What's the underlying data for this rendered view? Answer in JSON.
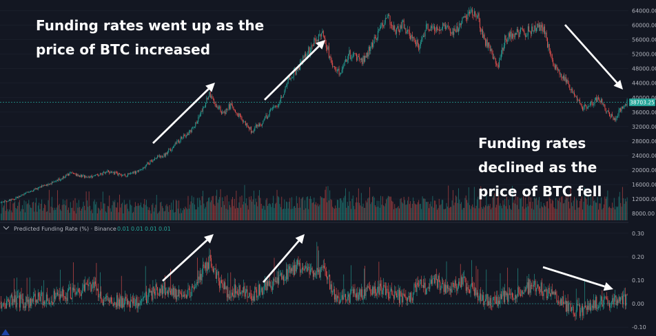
{
  "chart_data": {
    "type": "candlestick",
    "symbol_pair": "BTC",
    "colors": {
      "up": "#26a69a",
      "down": "#ef5350",
      "background": "#131722",
      "grid": "#1e2330",
      "annotation": "#ffffff",
      "price_label_bg": "#26a69a"
    },
    "price_axis": {
      "ticks": [
        "64000.00",
        "60000.00",
        "56000.00",
        "52000.00",
        "48000.00",
        "44000.00",
        "40000.00",
        "36000.00",
        "32000.00",
        "28000.00",
        "24000.00",
        "20000.00",
        "16000.00",
        "12000.00",
        "8000.00"
      ],
      "range": [
        6500,
        66000
      ]
    },
    "current_price": {
      "value": 38703.25,
      "label": "38703.25"
    },
    "price_keypoints": [
      [
        0,
        11000
      ],
      [
        14,
        12000
      ],
      [
        35,
        14500
      ],
      [
        55,
        16500
      ],
      [
        75,
        19000
      ],
      [
        95,
        18000
      ],
      [
        115,
        19500
      ],
      [
        135,
        18500
      ],
      [
        150,
        20000
      ],
      [
        165,
        23000
      ],
      [
        175,
        24000
      ],
      [
        190,
        27500
      ],
      [
        205,
        31000
      ],
      [
        215,
        35000
      ],
      [
        225,
        41000
      ],
      [
        232,
        38000
      ],
      [
        240,
        35500
      ],
      [
        248,
        38000
      ],
      [
        260,
        34000
      ],
      [
        270,
        31000
      ],
      [
        280,
        32500
      ],
      [
        290,
        36000
      ],
      [
        300,
        38000
      ],
      [
        310,
        45000
      ],
      [
        320,
        48000
      ],
      [
        330,
        52000
      ],
      [
        340,
        56000
      ],
      [
        348,
        58000
      ],
      [
        356,
        50000
      ],
      [
        366,
        47000
      ],
      [
        376,
        52000
      ],
      [
        390,
        50000
      ],
      [
        402,
        55000
      ],
      [
        410,
        60000
      ],
      [
        418,
        62000
      ],
      [
        426,
        58000
      ],
      [
        434,
        60000
      ],
      [
        444,
        56000
      ],
      [
        452,
        54000
      ],
      [
        460,
        60000
      ],
      [
        470,
        59000
      ],
      [
        480,
        60000
      ],
      [
        490,
        58000
      ],
      [
        500,
        62000
      ],
      [
        508,
        64500
      ],
      [
        515,
        62000
      ],
      [
        522,
        56000
      ],
      [
        530,
        52000
      ],
      [
        536,
        48000
      ],
      [
        544,
        56000
      ],
      [
        556,
        58000
      ],
      [
        566,
        58000
      ],
      [
        576,
        59500
      ],
      [
        586,
        58500
      ],
      [
        596,
        50000
      ],
      [
        604,
        46000
      ],
      [
        612,
        44000
      ],
      [
        620,
        40000
      ],
      [
        628,
        37000
      ],
      [
        636,
        38000
      ],
      [
        646,
        40000
      ],
      [
        654,
        36000
      ],
      [
        662,
        34000
      ],
      [
        670,
        37000
      ],
      [
        676,
        38700
      ]
    ],
    "volume_axis": {
      "label": "Volume"
    },
    "funding_rate": {
      "legend": "Predicted Funding Rate (%) · Binance",
      "values_shown": [
        "0.01",
        "0.01",
        "0.01",
        "0.01"
      ],
      "axis_ticks": [
        "0.30",
        "0.20",
        "0.10",
        "0.00",
        "-0.10"
      ],
      "range": [
        -0.12,
        0.32
      ],
      "keypoints": [
        [
          0,
          0.01
        ],
        [
          30,
          0.01
        ],
        [
          45,
          0.02
        ],
        [
          60,
          0.03
        ],
        [
          80,
          0.05
        ],
        [
          100,
          0.08
        ],
        [
          110,
          0.02
        ],
        [
          130,
          0.01
        ],
        [
          150,
          0.01
        ],
        [
          165,
          0.05
        ],
        [
          175,
          0.07
        ],
        [
          190,
          0.04
        ],
        [
          205,
          0.05
        ],
        [
          215,
          0.12
        ],
        [
          225,
          0.18
        ],
        [
          235,
          0.1
        ],
        [
          245,
          0.05
        ],
        [
          260,
          0.06
        ],
        [
          270,
          0.03
        ],
        [
          280,
          0.06
        ],
        [
          290,
          0.08
        ],
        [
          300,
          0.1
        ],
        [
          310,
          0.13
        ],
        [
          320,
          0.16
        ],
        [
          330,
          0.14
        ],
        [
          340,
          0.13
        ],
        [
          350,
          0.15
        ],
        [
          360,
          0.03
        ],
        [
          370,
          0.02
        ],
        [
          385,
          0.04
        ],
        [
          400,
          0.05
        ],
        [
          410,
          0.07
        ],
        [
          420,
          0.04
        ],
        [
          430,
          0.03
        ],
        [
          440,
          0.02
        ],
        [
          450,
          0.08
        ],
        [
          460,
          0.06
        ],
        [
          470,
          0.1
        ],
        [
          480,
          0.05
        ],
        [
          490,
          0.07
        ],
        [
          500,
          0.09
        ],
        [
          510,
          0.06
        ],
        [
          520,
          0.02
        ],
        [
          530,
          0.01
        ],
        [
          545,
          0.03
        ],
        [
          560,
          0.06
        ],
        [
          575,
          0.08
        ],
        [
          585,
          0.06
        ],
        [
          595,
          0.03
        ],
        [
          605,
          0.01
        ],
        [
          615,
          -0.02
        ],
        [
          625,
          -0.03
        ],
        [
          640,
          0.0
        ],
        [
          660,
          0.01
        ],
        [
          676,
          0.01
        ]
      ]
    },
    "annotations": [
      {
        "lines": [
          "Funding rates went up as the",
          "price of BTC increased"
        ]
      },
      {
        "lines": [
          "Funding rates",
          "declined as the",
          "price of BTC fell"
        ]
      }
    ],
    "arrows_price": [
      [
        [
          222,
          208
        ],
        [
          312,
          120
        ]
      ],
      [
        [
          384,
          145
        ],
        [
          472,
          58
        ]
      ],
      [
        [
          820,
          36
        ],
        [
          904,
          130
        ]
      ]
    ],
    "arrows_funding": [
      [
        [
          236,
          408
        ],
        [
          310,
          340
        ]
      ],
      [
        [
          382,
          410
        ],
        [
          442,
          340
        ]
      ],
      [
        [
          788,
          388
        ],
        [
          890,
          420
        ]
      ]
    ]
  }
}
